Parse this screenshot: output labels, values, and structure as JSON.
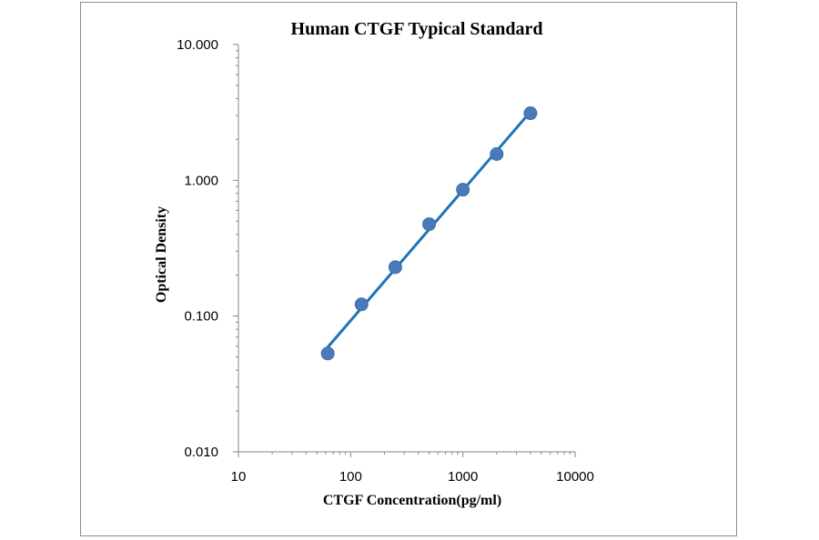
{
  "chart_data": {
    "type": "scatter",
    "title": "Human CTGF Typical Standard",
    "xlabel": "CTGF Concentration(pg/ml)",
    "ylabel": "Optical Density",
    "x_scale": "log",
    "y_scale": "log",
    "xlim": [
      10,
      10000
    ],
    "ylim": [
      0.01,
      10
    ],
    "x_ticks": [
      "10",
      "100",
      "1000",
      "10000"
    ],
    "y_ticks": [
      "0.010",
      "0.100",
      "1.000",
      "10.000"
    ],
    "grid": false,
    "legend": "none",
    "series": [
      {
        "x": [
          62.5,
          125,
          250,
          500,
          1000,
          2000,
          4000
        ],
        "y": [
          0.053,
          0.122,
          0.229,
          0.475,
          0.853,
          1.56,
          3.12
        ],
        "marker_color": "#4a7ab8",
        "line_color": "#1f74b8",
        "trendline": true
      }
    ]
  }
}
